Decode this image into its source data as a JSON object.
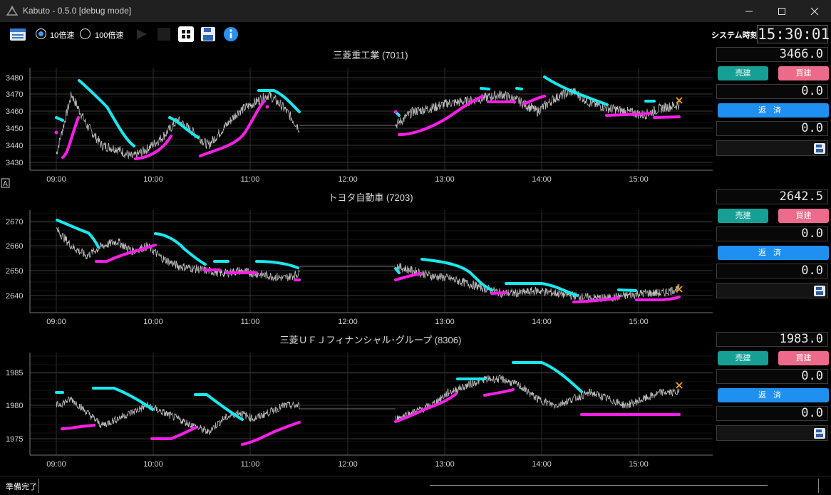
{
  "window": {
    "title": "Kabuto - 0.5.0 [debug mode]"
  },
  "toolbar": {
    "speed_options": [
      "10倍速",
      "100倍速"
    ],
    "selected_speed": "10倍速",
    "clock_label": "システム時刻",
    "clock_value": "15:30:01"
  },
  "charts": [
    {
      "title": "三菱重工業 (7011)",
      "y_ticks": [
        "3480",
        "3470",
        "3460",
        "3450",
        "3440",
        "3430"
      ],
      "x_ticks": [
        "09:00",
        "10:00",
        "11:00",
        "12:00",
        "13:00",
        "14:00",
        "15:00"
      ],
      "badge": "A"
    },
    {
      "title": "トヨタ自動車 (7203)",
      "y_ticks": [
        "2670",
        "2660",
        "2650",
        "2640"
      ],
      "x_ticks": [
        "09:00",
        "10:00",
        "11:00",
        "12:00",
        "13:00",
        "14:00",
        "15:00"
      ]
    },
    {
      "title": "三菱ＵＦＪフィナンシャル･グループ (8306)",
      "y_ticks": [
        "1985",
        "1980",
        "1975"
      ],
      "x_ticks": [
        "09:00",
        "10:00",
        "11:00",
        "12:00",
        "13:00",
        "14:00",
        "15:00"
      ]
    }
  ],
  "panels": [
    {
      "price": "3466.0",
      "sell": "売建",
      "buy": "買建",
      "position": "0.0",
      "repay": "返済",
      "profit": "0.0"
    },
    {
      "price": "2642.5",
      "sell": "売建",
      "buy": "買建",
      "position": "0.0",
      "repay": "返済",
      "profit": "0.0"
    },
    {
      "price": "1983.0",
      "sell": "売建",
      "buy": "買建",
      "position": "0.0",
      "repay": "返済",
      "profit": "0.0"
    }
  ],
  "status": {
    "text": "準備完了"
  },
  "colors": {
    "price_line": "#bdbdbd",
    "trend_up": "#ff1ee8",
    "trend_down": "#18e8f0",
    "last_marker": "#f0a020",
    "sell_button": "#16a095",
    "buy_button": "#ec6a8a",
    "repay_button": "#1f8ff0"
  }
}
